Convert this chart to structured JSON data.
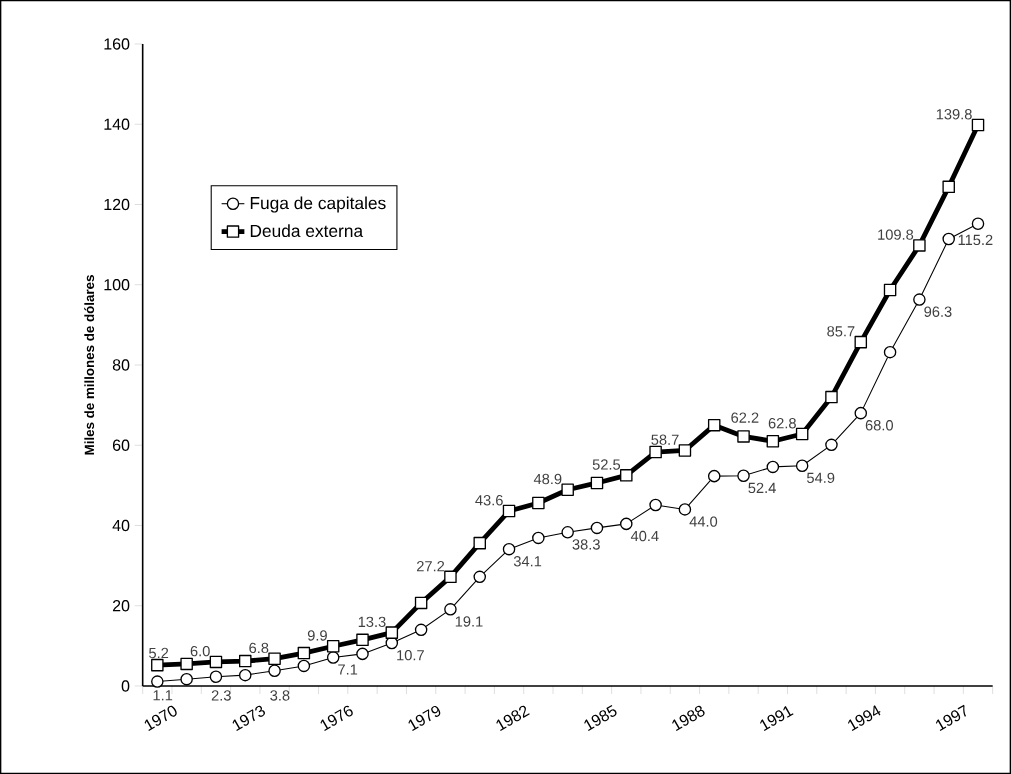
{
  "chart_data": {
    "type": "line",
    "ylabel": "Miles de millones de dólares",
    "categories": [
      "1970",
      null,
      null,
      "1973",
      null,
      null,
      "1976",
      null,
      null,
      "1979",
      null,
      null,
      "1982",
      null,
      null,
      "1985",
      null,
      null,
      "1988",
      null,
      null,
      "1991",
      null,
      null,
      "1994",
      null,
      null,
      "1997",
      null
    ],
    "ylim": [
      0,
      160
    ],
    "yticks": [
      0,
      20,
      40,
      60,
      80,
      100,
      120,
      140,
      160
    ],
    "legend": "top left",
    "series": [
      {
        "name": "Fuga de capitales",
        "color": "#000000",
        "marker": "circle",
        "values": [
          1.1,
          1.7,
          2.3,
          2.7,
          3.8,
          5.0,
          7.1,
          8.0,
          10.7,
          14.0,
          19.1,
          27.2,
          34.1,
          36.9,
          38.3,
          39.4,
          40.4,
          45.1,
          44.0,
          52.3,
          52.4,
          54.6,
          54.9,
          60.1,
          68.0,
          83.2,
          96.3,
          111.4,
          115.2
        ],
        "value_labels": [
          "1.1",
          null,
          "2.3",
          null,
          "3.8",
          null,
          "7.1",
          null,
          "10.7",
          null,
          "19.1",
          null,
          "34.1",
          null,
          "38.3",
          null,
          "40.4",
          null,
          "44.0",
          null,
          "52.4",
          null,
          "54.9",
          null,
          "68.0",
          null,
          "96.3",
          null,
          "115.2"
        ]
      },
      {
        "name": "Deuda externa",
        "color": "#000000",
        "marker": "square",
        "values": [
          5.2,
          5.5,
          6.0,
          6.2,
          6.8,
          8.2,
          9.9,
          11.5,
          13.3,
          20.7,
          27.2,
          35.6,
          43.6,
          45.6,
          48.9,
          50.6,
          52.5,
          58.3,
          58.7,
          65.0,
          62.2,
          61.0,
          62.8,
          72.0,
          85.7,
          98.7,
          109.8,
          124.4,
          139.8
        ],
        "value_labels": [
          "5.2",
          null,
          "6.0",
          null,
          "6.8",
          null,
          "9.9",
          null,
          "13.3",
          null,
          "27.2",
          null,
          "43.6",
          null,
          "48.9",
          null,
          "52.5",
          null,
          "58.7",
          null,
          "62.2",
          null,
          "62.8",
          null,
          "85.7",
          null,
          "109.8",
          null,
          "139.8"
        ]
      }
    ]
  }
}
